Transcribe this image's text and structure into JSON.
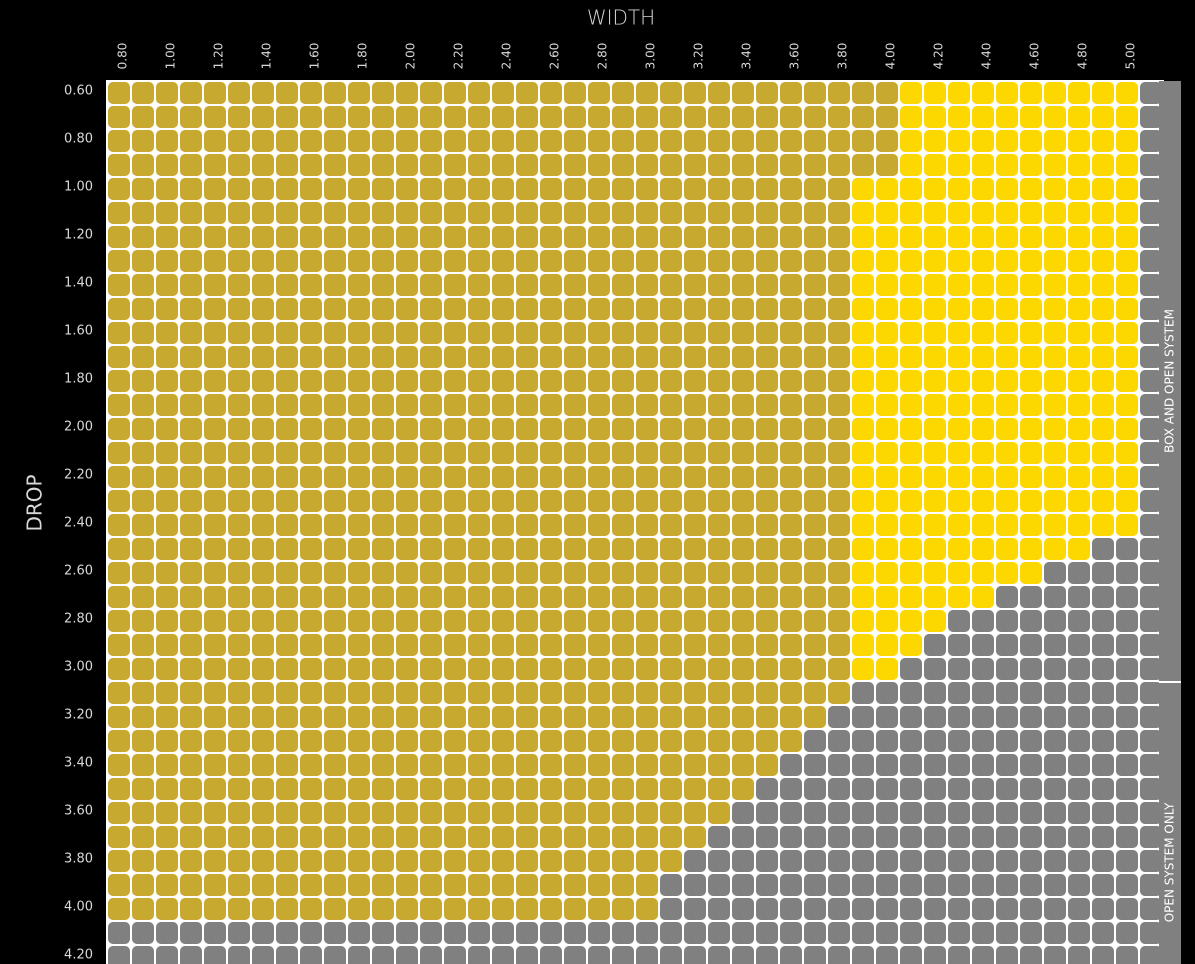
{
  "chart_data": {
    "type": "heatmap",
    "title": "WIDTH",
    "y_label": "DROP",
    "columns": [
      "0.80",
      null,
      "1.00",
      null,
      "1.20",
      null,
      "1.40",
      null,
      "1.60",
      null,
      "1.80",
      null,
      "2.00",
      null,
      "2.20",
      null,
      "2.40",
      null,
      "2.60",
      null,
      "2.80",
      null,
      "3.00",
      null,
      "3.20",
      null,
      "3.40",
      null,
      "3.60",
      null,
      "3.80",
      null,
      "4.00",
      null,
      "4.20",
      null,
      "4.40",
      null,
      "4.60",
      null,
      "4.80",
      null,
      "5.00",
      null
    ],
    "rows": [
      "0.60",
      null,
      "0.80",
      null,
      "1.00",
      null,
      "1.20",
      null,
      "1.40",
      null,
      "1.60",
      null,
      "1.80",
      null,
      "2.00",
      null,
      "2.20",
      null,
      "2.40",
      null,
      "2.60",
      null,
      "2.80",
      null,
      "3.00",
      null,
      "3.20",
      null,
      "3.40",
      null,
      "3.60",
      null,
      "3.80",
      null,
      "4.00",
      null,
      "4.20"
    ],
    "colors": {
      "D": "#c8a92f",
      "Y": "#fcd800",
      "G": "#808080"
    },
    "cells": [
      "DDDDDDDDDDDDDDDDDDDDDDDDDDDDDDDDDYYYYYYYYYYG",
      "DDDDDDDDDDDDDDDDDDDDDDDDDDDDDDDDDYYYYYYYYYYG",
      "DDDDDDDDDDDDDDDDDDDDDDDDDDDDDDDDDYYYYYYYYYYG",
      "DDDDDDDDDDDDDDDDDDDDDDDDDDDDDDDDDYYYYYYYYYYG",
      "DDDDDDDDDDDDDDDDDDDDDDDDDDDDDDDYYYYYYYYYYYYG",
      "DDDDDDDDDDDDDDDDDDDDDDDDDDDDDDDYYYYYYYYYYYYG",
      "DDDDDDDDDDDDDDDDDDDDDDDDDDDDDDDYYYYYYYYYYYYG",
      "DDDDDDDDDDDDDDDDDDDDDDDDDDDDDDDYYYYYYYYYYYYG",
      "DDDDDDDDDDDDDDDDDDDDDDDDDDDDDDDYYYYYYYYYYYYG",
      "DDDDDDDDDDDDDDDDDDDDDDDDDDDDDDDYYYYYYYYYYYYG",
      "DDDDDDDDDDDDDDDDDDDDDDDDDDDDDDDYYYYYYYYYYYYG",
      "DDDDDDDDDDDDDDDDDDDDDDDDDDDDDDDYYYYYYYYYYYYG",
      "DDDDDDDDDDDDDDDDDDDDDDDDDDDDDDDYYYYYYYYYYYYG",
      "DDDDDDDDDDDDDDDDDDDDDDDDDDDDDDDYYYYYYYYYYYYG",
      "DDDDDDDDDDDDDDDDDDDDDDDDDDDDDDDYYYYYYYYYYYYG",
      "DDDDDDDDDDDDDDDDDDDDDDDDDDDDDDDYYYYYYYYYYYYG",
      "DDDDDDDDDDDDDDDDDDDDDDDDDDDDDDDYYYYYYYYYYYYG",
      "DDDDDDDDDDDDDDDDDDDDDDDDDDDDDDDYYYYYYYYYYYYG",
      "DDDDDDDDDDDDDDDDDDDDDDDDDDDDDDDYYYYYYYYYYYYG",
      "DDDDDDDDDDDDDDDDDDDDDDDDDDDDDDDYYYYYYYYYYGGG",
      "DDDDDDDDDDDDDDDDDDDDDDDDDDDDDDDYYYYYYYYGGGGG",
      "DDDDDDDDDDDDDDDDDDDDDDDDDDDDDDDYYYYYYGGGGGGG",
      "DDDDDDDDDDDDDDDDDDDDDDDDDDDDDDDYYYYGGGGGGGGG",
      "DDDDDDDDDDDDDDDDDDDDDDDDDDDDDDDYYYGGGGGGGGGG",
      "DDDDDDDDDDDDDDDDDDDDDDDDDDDDDDDYYGGGGGGGGGGG",
      "DDDDDDDDDDDDDDDDDDDDDDDDDDDDDDDGGGGGGGGGGGGG",
      "DDDDDDDDDDDDDDDDDDDDDDDDDDDDDDGGGGGGGGGGGGGG",
      "DDDDDDDDDDDDDDDDDDDDDDDDDDDDDGGGGGGGGGGGGGGG",
      "DDDDDDDDDDDDDDDDDDDDDDDDDDDDGGGGGGGGGGGGGGGG",
      "DDDDDDDDDDDDDDDDDDDDDDDDDDDGGGGGGGGGGGGGGGGG",
      "DDDDDDDDDDDDDDDDDDDDDDDDDDGGGGGGGGGGGGGGGGGG",
      "DDDDDDDDDDDDDDDDDDDDDDDDDGGGGGGGGGGGGGGGGGGG",
      "DDDDDDDDDDDDDDDDDDDDDDDDGGGGGGGGGGGGGGGGGGGG",
      "DDDDDDDDDDDDDDDDDDDDDDDGGGGGGGGGGGGGGGGGGGGG",
      "DDDDDDDDDDDDDDDDDDDDDDDGGGGGGGGGGGGGGGGGGGGG",
      "GGGGGGGGGGGGGGGGGGGGGGGGGGGGGGGGGGGGGGGGGGGG",
      "GGGGGGGGGGGGGGGGGGGGGGGGGGGGGGGGGGGGGGGGGGGG"
    ],
    "side_labels": [
      "BOX AND OPEN SYSTEM",
      "OPEN SYSTEM ONLY"
    ]
  }
}
